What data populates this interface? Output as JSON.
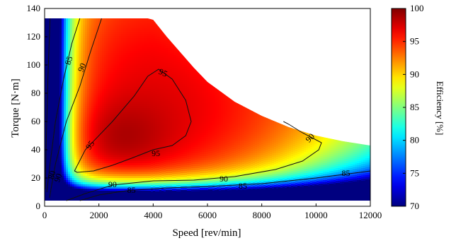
{
  "chart_data": {
    "type": "heatmap",
    "title": "",
    "xlabel": "Speed [rev/min]",
    "ylabel": "Torque [N·m]",
    "xlim": [
      0,
      12000
    ],
    "ylim": [
      0,
      140
    ],
    "xticks": [
      "0",
      "2000",
      "4000",
      "6000",
      "8000",
      "10000",
      "12000"
    ],
    "yticks": [
      "0",
      "20",
      "40",
      "60",
      "80",
      "100",
      "120",
      "140"
    ],
    "colorbar": {
      "label": "Efficiency [%]",
      "range": [
        70,
        100
      ],
      "ticks": [
        "70",
        "75",
        "80",
        "85",
        "90",
        "95",
        "100"
      ],
      "colormap": "jet"
    },
    "operating_envelope": {
      "speed": [
        0,
        500,
        1000,
        2000,
        3000,
        3800,
        4000,
        4500,
        5000,
        5500,
        6000,
        7000,
        8000,
        9000,
        10000,
        11000,
        12000
      ],
      "max_torque": [
        133,
        133,
        133,
        133,
        133,
        133,
        132,
        120,
        109,
        98,
        88,
        74,
        64,
        56,
        50,
        46,
        43
      ]
    },
    "min_torque": 4,
    "peak": {
      "speed": 4200,
      "torque": 70,
      "efficiency": 97
    },
    "contours": [
      {
        "level": 95,
        "label": "95",
        "speed": [
          1100,
          1500,
          2500,
          3300,
          3800,
          4200,
          4700,
          5200,
          5400,
          5200,
          4700,
          4000,
          3200,
          2500,
          1800,
          1200,
          1100
        ],
        "torque": [
          25,
          40,
          60,
          78,
          92,
          97,
          90,
          75,
          60,
          50,
          43,
          40,
          34,
          29,
          25,
          24,
          25
        ]
      },
      {
        "level": 90,
        "label": "90",
        "speed": [
          180,
          400,
          800,
          1300,
          1700,
          2100
        ],
        "torque": [
          6,
          30,
          60,
          85,
          110,
          133
        ]
      },
      {
        "level": 90,
        "label": "90",
        "speed": [
          800,
          1500,
          2500,
          4000,
          5500,
          7000,
          8500,
          9500,
          10100,
          10200,
          9500,
          9000,
          8800
        ],
        "torque": [
          4,
          9,
          15,
          18,
          18.5,
          21,
          26,
          32,
          40,
          45,
          52,
          58,
          60
        ]
      },
      {
        "level": 85,
        "label": "85",
        "speed": [
          80,
          200,
          400,
          700,
          1000,
          1300
        ],
        "torque": [
          10,
          30,
          60,
          90,
          115,
          133
        ]
      },
      {
        "level": 85,
        "label": "85",
        "speed": [
          1300,
          2000,
          3000,
          4500,
          6000,
          8000,
          10000,
          12000
        ],
        "torque": [
          4,
          8,
          11,
          13,
          14,
          16,
          20,
          25
        ]
      },
      {
        "level": 80,
        "label": "80",
        "speed": [
          20,
          60,
          120,
          200
        ],
        "torque": [
          12,
          45,
          90,
          133
        ]
      }
    ],
    "contour_labels": [
      {
        "text": "95",
        "speed": 4350,
        "torque": 94,
        "angle": 25
      },
      {
        "text": "95",
        "speed": 1700,
        "torque": 43,
        "angle": -55
      },
      {
        "text": "95",
        "speed": 4100,
        "torque": 37,
        "angle": 0
      },
      {
        "text": "90",
        "speed": 1400,
        "torque": 98,
        "angle": -68
      },
      {
        "text": "90",
        "speed": 2500,
        "torque": 15,
        "angle": 0
      },
      {
        "text": "90",
        "speed": 6600,
        "torque": 19,
        "angle": 0
      },
      {
        "text": "90",
        "speed": 9800,
        "torque": 48,
        "angle": -45
      },
      {
        "text": "85",
        "speed": 920,
        "torque": 103,
        "angle": -72
      },
      {
        "text": "85",
        "speed": 3200,
        "torque": 11,
        "angle": 0
      },
      {
        "text": "85",
        "speed": 7300,
        "torque": 14,
        "angle": 0
      },
      {
        "text": "85",
        "speed": 11100,
        "torque": 23,
        "angle": 0
      },
      {
        "text": "80",
        "speed": 300,
        "torque": 22,
        "angle": -75
      },
      {
        "text": "90",
        "speed": 520,
        "torque": 20,
        "angle": -70
      }
    ]
  }
}
